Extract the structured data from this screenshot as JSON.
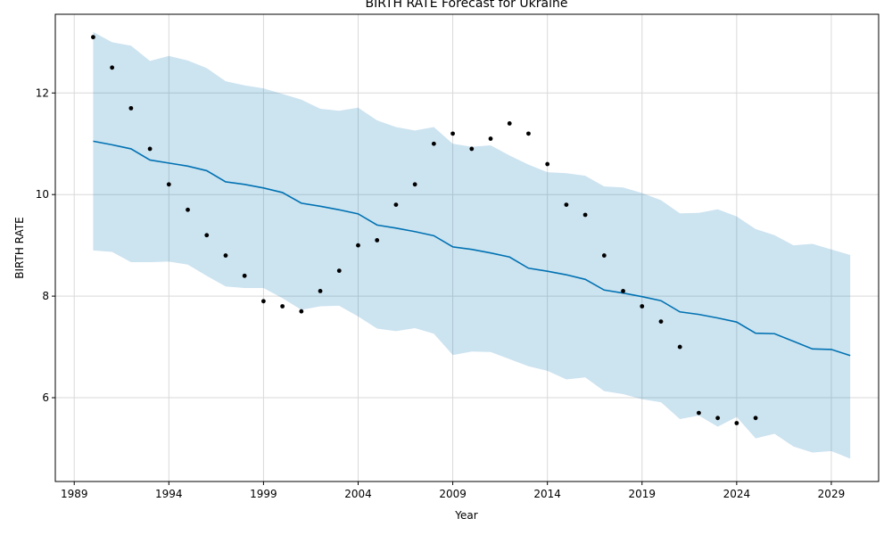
{
  "chart_data": {
    "type": "line",
    "title": "BIRTH RATE Forecast for Ukraine",
    "xlabel": "Year",
    "ylabel": "BIRTH RATE",
    "xlim": [
      1988.0,
      2031.5
    ],
    "ylim": [
      4.35,
      13.55
    ],
    "x_ticks": [
      1989,
      1994,
      1999,
      2004,
      2009,
      2014,
      2019,
      2024,
      2029
    ],
    "x_tick_labels": [
      "1989",
      "1994",
      "1999",
      "2004",
      "2009",
      "2014",
      "2019",
      "2024",
      "2029"
    ],
    "y_ticks": [
      6,
      8,
      10,
      12
    ],
    "y_tick_labels": [
      "6",
      "8",
      "10",
      "12"
    ],
    "grid": true,
    "colors": {
      "forecast_line": "#0072B2",
      "interval_fill": "#0072B2",
      "observed_points": "#000000",
      "grid": "#d9d9d9"
    },
    "series": [
      {
        "kind": "observed",
        "x": [
          1990,
          1991,
          1992,
          1993,
          1994,
          1995,
          1996,
          1997,
          1998,
          1999,
          2000,
          2001,
          2002,
          2003,
          2004,
          2005,
          2006,
          2007,
          2008,
          2009,
          2010,
          2011,
          2012,
          2013,
          2014,
          2015,
          2016,
          2017,
          2018,
          2019,
          2020,
          2021,
          2022,
          2023,
          2024,
          2025
        ],
        "values": [
          13.1,
          12.5,
          11.7,
          10.9,
          10.2,
          9.7,
          9.2,
          8.8,
          8.4,
          7.9,
          7.8,
          7.7,
          8.1,
          8.5,
          9.0,
          9.1,
          9.8,
          10.2,
          11.0,
          11.2,
          10.9,
          11.1,
          11.4,
          11.2,
          10.6,
          9.8,
          9.6,
          8.8,
          8.1,
          7.8,
          7.5,
          7.0,
          5.7,
          5.6,
          5.5,
          5.6
        ]
      },
      {
        "kind": "forecast",
        "x": [
          1990,
          1991,
          1992,
          1993,
          1994,
          1995,
          1996,
          1997,
          1998,
          1999,
          2000,
          2001,
          2002,
          2003,
          2004,
          2005,
          2006,
          2007,
          2008,
          2009,
          2010,
          2011,
          2012,
          2013,
          2014,
          2015,
          2016,
          2017,
          2018,
          2019,
          2020,
          2021,
          2022,
          2023,
          2024,
          2025,
          2026,
          2027,
          2028,
          2029,
          2030
        ],
        "values": [
          11.05,
          10.98,
          10.9,
          10.68,
          10.62,
          10.56,
          10.47,
          10.25,
          10.2,
          10.13,
          10.04,
          9.83,
          9.77,
          9.7,
          9.62,
          9.4,
          9.34,
          9.27,
          9.19,
          8.97,
          8.92,
          8.85,
          8.77,
          8.55,
          8.49,
          8.42,
          8.33,
          8.12,
          8.06,
          7.99,
          7.91,
          7.69,
          7.64,
          7.57,
          7.49,
          7.27,
          7.26,
          7.11,
          6.96,
          6.95,
          6.83
        ],
        "lower": [
          8.9,
          8.87,
          8.67,
          8.67,
          8.68,
          8.62,
          8.4,
          8.19,
          8.16,
          8.16,
          7.96,
          7.73,
          7.8,
          7.81,
          7.6,
          7.36,
          7.31,
          7.37,
          7.26,
          6.84,
          6.91,
          6.9,
          6.76,
          6.62,
          6.53,
          6.36,
          6.4,
          6.13,
          6.07,
          5.97,
          5.91,
          5.58,
          5.65,
          5.43,
          5.62,
          5.2,
          5.29,
          5.04,
          4.92,
          4.95,
          4.8
        ],
        "upper": [
          13.2,
          13.0,
          12.93,
          12.63,
          12.73,
          12.64,
          12.49,
          12.23,
          12.15,
          12.09,
          11.98,
          11.87,
          11.69,
          11.65,
          11.71,
          11.46,
          11.33,
          11.26,
          11.33,
          11.0,
          10.94,
          10.97,
          10.77,
          10.59,
          10.44,
          10.42,
          10.37,
          10.16,
          10.14,
          10.03,
          9.89,
          9.63,
          9.64,
          9.71,
          9.57,
          9.32,
          9.2,
          9.0,
          9.03,
          8.92,
          8.81
        ]
      }
    ]
  }
}
